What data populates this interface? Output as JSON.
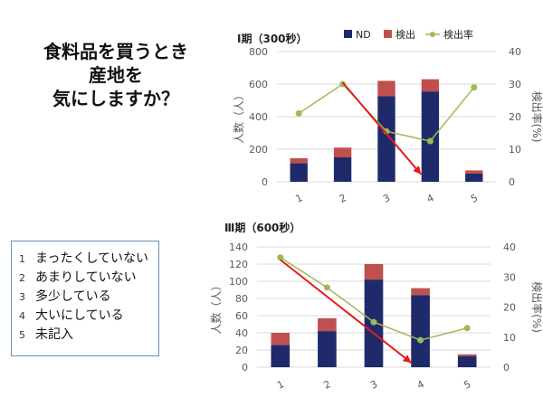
{
  "slide_title": [
    "食料品を買うとき",
    "産地を",
    "気にしますか？"
  ],
  "answer_options": [
    {
      "num": "1",
      "text": "まったくしていない"
    },
    {
      "num": "2",
      "text": "あまりしていない"
    },
    {
      "num": "3",
      "text": "多少している"
    },
    {
      "num": "4",
      "text": "大いにしている"
    },
    {
      "num": "5",
      "text": "未記入"
    }
  ],
  "colors": {
    "nd": "#1f2a6b",
    "detected": "#c0504d",
    "rate": "#9bbb59",
    "arrow": "#e8191c",
    "grid": "#d9d9d9",
    "axis_text": "#595959",
    "frame": "#6a8fb4"
  },
  "chart_data": [
    {
      "type": "bar",
      "stacked": true,
      "title": "Ⅰ期（300秒）",
      "categories": [
        "1",
        "2",
        "3",
        "4",
        "5"
      ],
      "ylabel": "人数（人）",
      "y2label": "検出率(%)",
      "ylim": [
        0,
        800
      ],
      "yticks": [
        0,
        200,
        400,
        600,
        800
      ],
      "y2lim": [
        0,
        40
      ],
      "y2ticks": [
        0,
        10,
        20,
        30,
        40
      ],
      "grid": true,
      "legend": "top",
      "series": [
        {
          "name": "ND",
          "type": "bar",
          "values": [
            115,
            150,
            525,
            555,
            50
          ]
        },
        {
          "name": "検出",
          "type": "bar",
          "values": [
            30,
            60,
            95,
            75,
            20
          ]
        },
        {
          "name": "検出率",
          "type": "line",
          "axis": "right",
          "values": [
            21,
            30,
            15.5,
            12.5,
            29
          ]
        }
      ],
      "annotations": [
        {
          "type": "arrow",
          "from": {
            "x": "2",
            "y": 610
          },
          "to": {
            "x": "4",
            "y": 45
          }
        }
      ]
    },
    {
      "type": "bar",
      "stacked": true,
      "title": "Ⅲ期（600秒）",
      "categories": [
        "1",
        "2",
        "3",
        "4",
        "5"
      ],
      "ylabel": "人数（人）",
      "y2label": "検出率(%)",
      "ylim": [
        0,
        140
      ],
      "yticks": [
        0,
        20,
        40,
        60,
        80,
        100,
        120,
        140
      ],
      "y2lim": [
        0,
        40
      ],
      "y2ticks": [
        0,
        10,
        20,
        30,
        40
      ],
      "grid": true,
      "legend": "none",
      "series": [
        {
          "name": "ND",
          "type": "bar",
          "values": [
            26,
            42,
            102,
            84,
            13
          ]
        },
        {
          "name": "検出",
          "type": "bar",
          "values": [
            14,
            15,
            18,
            8,
            2
          ]
        },
        {
          "name": "検出率",
          "type": "line",
          "axis": "right",
          "values": [
            36.5,
            26.5,
            15,
            9,
            13
          ]
        }
      ],
      "annotations": [
        {
          "type": "arrow",
          "from": {
            "x": "1",
            "y": 125
          },
          "to": {
            "x": "4",
            "y": 5
          }
        }
      ]
    }
  ]
}
